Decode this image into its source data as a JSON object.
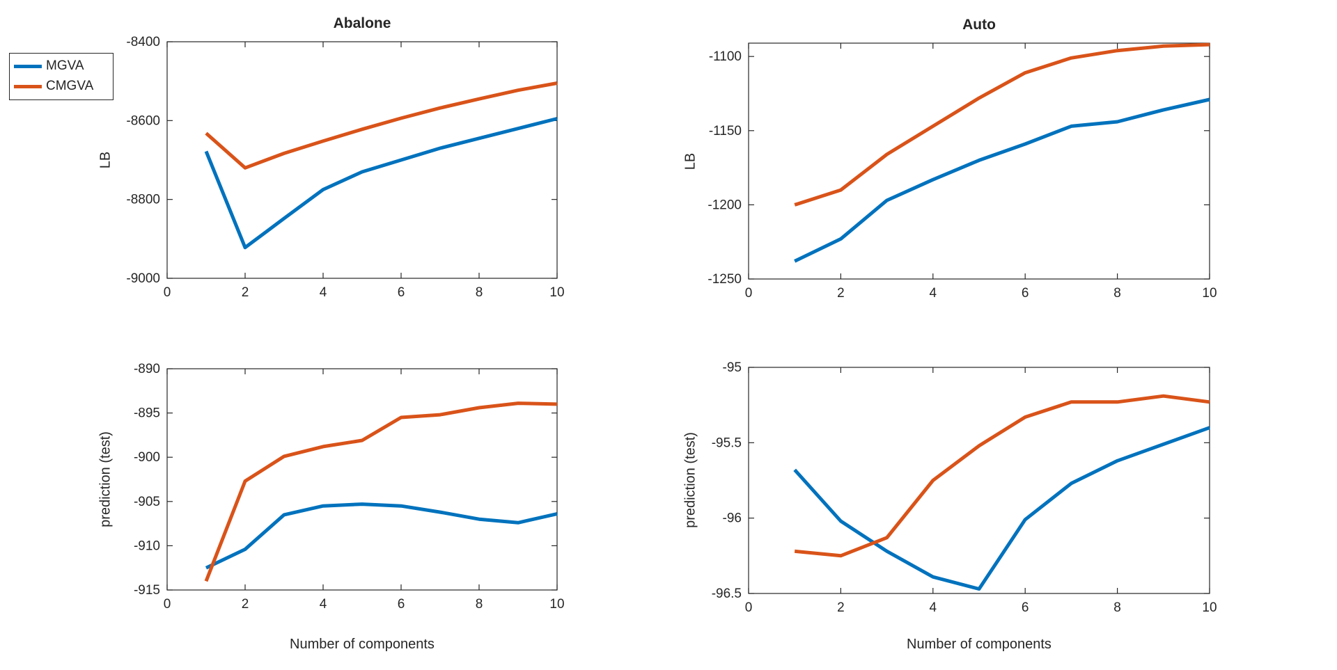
{
  "figure": {
    "background": "#ffffff",
    "axis_color": "#262626",
    "text_color": "#262626",
    "legend": {
      "items": [
        {
          "label": "MGVA",
          "color": "#0072BD"
        },
        {
          "label": "CMGVA",
          "color": "#D95319"
        }
      ]
    }
  },
  "chart_data": [
    {
      "id": "abalone-lb",
      "type": "line",
      "title": "Abalone",
      "ylabel": "LB",
      "xlabel": "",
      "x": [
        1,
        2,
        3,
        4,
        5,
        6,
        7,
        8,
        9,
        10
      ],
      "xlim": [
        0,
        10
      ],
      "ylim": [
        -9000,
        -8400
      ],
      "xtick_values": [
        0,
        2,
        4,
        6,
        8,
        10
      ],
      "xtick_labels": [
        "0",
        "2",
        "4",
        "6",
        "8",
        "10"
      ],
      "ytick_values": [
        -9000,
        -8800,
        -8600,
        -8400
      ],
      "ytick_labels": [
        "-9000",
        "-8800",
        "-8600",
        "-8400"
      ],
      "grid": false,
      "series": [
        {
          "name": "MGVA",
          "color": "#0072BD",
          "values": [
            -8678,
            -8922,
            -8848,
            -8775,
            -8730,
            -8700,
            -8670,
            -8645,
            -8620,
            -8595
          ]
        },
        {
          "name": "CMGVA",
          "color": "#D95319",
          "values": [
            -8632,
            -8720,
            -8683,
            -8652,
            -8622,
            -8594,
            -8568,
            -8545,
            -8523,
            -8505
          ]
        }
      ]
    },
    {
      "id": "auto-lb",
      "type": "line",
      "title": "Auto",
      "ylabel": "LB",
      "xlabel": "",
      "x": [
        1,
        2,
        3,
        4,
        5,
        6,
        7,
        8,
        9,
        10
      ],
      "xlim": [
        0,
        10
      ],
      "ylim": [
        -1250,
        -1091
      ],
      "xtick_values": [
        0,
        2,
        4,
        6,
        8,
        10
      ],
      "xtick_labels": [
        "0",
        "2",
        "4",
        "6",
        "8",
        "10"
      ],
      "ytick_values": [
        -1250,
        -1200,
        -1150,
        -1100
      ],
      "ytick_labels": [
        "-1250",
        "-1200",
        "-1150",
        "-1100"
      ],
      "grid": false,
      "series": [
        {
          "name": "MGVA",
          "color": "#0072BD",
          "values": [
            -1238,
            -1223,
            -1197,
            -1183,
            -1170,
            -1159,
            -1147,
            -1144,
            -1136,
            -1129
          ]
        },
        {
          "name": "CMGVA",
          "color": "#D95319",
          "values": [
            -1200,
            -1190,
            -1166,
            -1147,
            -1128,
            -1111,
            -1101,
            -1096,
            -1093,
            -1092
          ]
        }
      ]
    },
    {
      "id": "abalone-prediction",
      "type": "line",
      "title": "",
      "ylabel": "prediction (test)",
      "xlabel": "Number of components",
      "x": [
        1,
        2,
        3,
        4,
        5,
        6,
        7,
        8,
        9,
        10
      ],
      "xlim": [
        0,
        10
      ],
      "ylim": [
        -915,
        -890
      ],
      "xtick_values": [
        0,
        2,
        4,
        6,
        8,
        10
      ],
      "xtick_labels": [
        "0",
        "2",
        "4",
        "6",
        "8",
        "10"
      ],
      "ytick_values": [
        -915,
        -910,
        -905,
        -900,
        -895,
        -890
      ],
      "ytick_labels": [
        "-915",
        "-910",
        "-905",
        "-900",
        "-895",
        "-890"
      ],
      "grid": false,
      "series": [
        {
          "name": "MGVA",
          "color": "#0072BD",
          "values": [
            -912.5,
            -910.4,
            -906.5,
            -905.5,
            -905.3,
            -905.5,
            -906.2,
            -907.0,
            -907.4,
            -906.4
          ]
        },
        {
          "name": "CMGVA",
          "color": "#D95319",
          "values": [
            -914.0,
            -902.7,
            -899.9,
            -898.8,
            -898.1,
            -895.5,
            -895.2,
            -894.4,
            -893.9,
            -894.0
          ]
        }
      ]
    },
    {
      "id": "auto-prediction",
      "type": "line",
      "title": "",
      "ylabel": "prediction (test)",
      "xlabel": "Number of components",
      "x": [
        1,
        2,
        3,
        4,
        5,
        6,
        7,
        8,
        9,
        10
      ],
      "xlim": [
        0,
        10
      ],
      "ylim": [
        -96.5,
        -95
      ],
      "xtick_values": [
        0,
        2,
        4,
        6,
        8,
        10
      ],
      "xtick_labels": [
        "0",
        "2",
        "4",
        "6",
        "8",
        "10"
      ],
      "ytick_values": [
        -96.5,
        -96,
        -95.5,
        -95
      ],
      "ytick_labels": [
        "-96.5",
        "-96",
        "-95.5",
        "-95"
      ],
      "grid": false,
      "series": [
        {
          "name": "MGVA",
          "color": "#0072BD",
          "values": [
            -95.68,
            -96.02,
            -96.22,
            -96.39,
            -96.47,
            -96.01,
            -95.77,
            -95.62,
            -95.51,
            -95.4
          ]
        },
        {
          "name": "CMGVA",
          "color": "#D95319",
          "values": [
            -96.22,
            -96.25,
            -96.13,
            -95.75,
            -95.52,
            -95.33,
            -95.23,
            -95.23,
            -95.19,
            -95.23
          ]
        }
      ]
    }
  ]
}
